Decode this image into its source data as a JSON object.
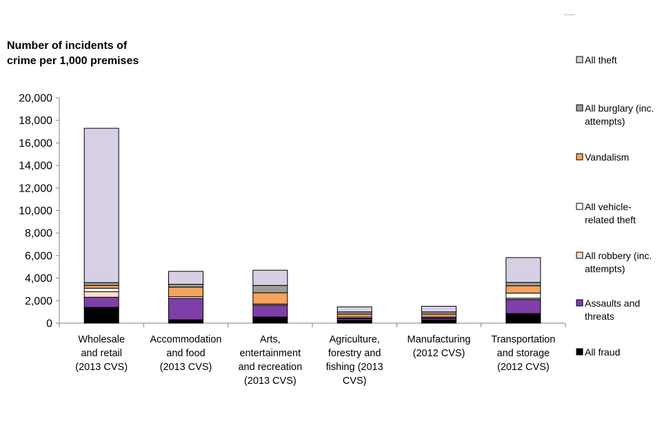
{
  "chart_data": {
    "type": "bar",
    "stacked": true,
    "ylabel": "Number of incidents of crime per 1,000 premises",
    "ylim": [
      0,
      20000
    ],
    "yticks": [
      "0",
      "2,000",
      "4,000",
      "6,000",
      "8,000",
      "10,000",
      "12,000",
      "14,000",
      "16,000",
      "18,000",
      "20,000"
    ],
    "ytick_values": [
      0,
      2000,
      4000,
      6000,
      8000,
      10000,
      12000,
      14000,
      16000,
      18000,
      20000
    ],
    "categories": [
      [
        "Wholesale",
        "and retail",
        "(2013 CVS)"
      ],
      [
        "Accommodation",
        "and food",
        "(2013 CVS)"
      ],
      [
        "Arts,",
        "entertainment",
        "and recreation",
        "(2013 CVS)"
      ],
      [
        "Agriculture,",
        "forestry and",
        "fishing (2013",
        "CVS)"
      ],
      [
        "Manufacturing",
        "(2012 CVS)"
      ],
      [
        "Transportation",
        "and storage",
        "(2012 CVS)"
      ]
    ],
    "legend_position": "right",
    "series": [
      {
        "name": "All fraud",
        "color": "#000000",
        "values": [
          1400,
          300,
          550,
          250,
          280,
          850
        ]
      },
      {
        "name": "Assaults and threats",
        "color": "#7f3fa9",
        "values": [
          900,
          1900,
          1050,
          150,
          150,
          1250
        ]
      },
      {
        "name": "All robbery (inc. attempts)",
        "color": "#fcdcc4",
        "values": [
          500,
          0,
          0,
          50,
          40,
          120
        ]
      },
      {
        "name": "All vehicle-related theft",
        "color": "#ffffff",
        "values": [
          300,
          150,
          100,
          100,
          80,
          450
        ]
      },
      {
        "name": "Vandalism",
        "color": "#f6a35c",
        "values": [
          250,
          850,
          1000,
          250,
          250,
          650
        ]
      },
      {
        "name": "All burglary (inc. attempts)",
        "color": "#9d9d9d",
        "values": [
          250,
          250,
          650,
          200,
          200,
          300
        ]
      },
      {
        "name": "All theft",
        "color": "#d7d0e4",
        "values": [
          13700,
          1150,
          1350,
          450,
          500,
          2200
        ]
      }
    ],
    "legend_order": [
      "All theft",
      "All burglary (inc. attempts)",
      "Vandalism",
      "All vehicle-related theft",
      "All robbery (inc. attempts)",
      "Assaults and threats",
      "All fraud"
    ],
    "legend_lines": [
      [
        "All theft"
      ],
      [
        "All burglary (inc.",
        "attempts)"
      ],
      [
        "Vandalism"
      ],
      [
        "All vehicle-",
        "related theft"
      ],
      [
        "All robbery (inc.",
        "attempts)"
      ],
      [
        "Assaults and",
        "threats"
      ],
      [
        "All fraud"
      ]
    ]
  }
}
